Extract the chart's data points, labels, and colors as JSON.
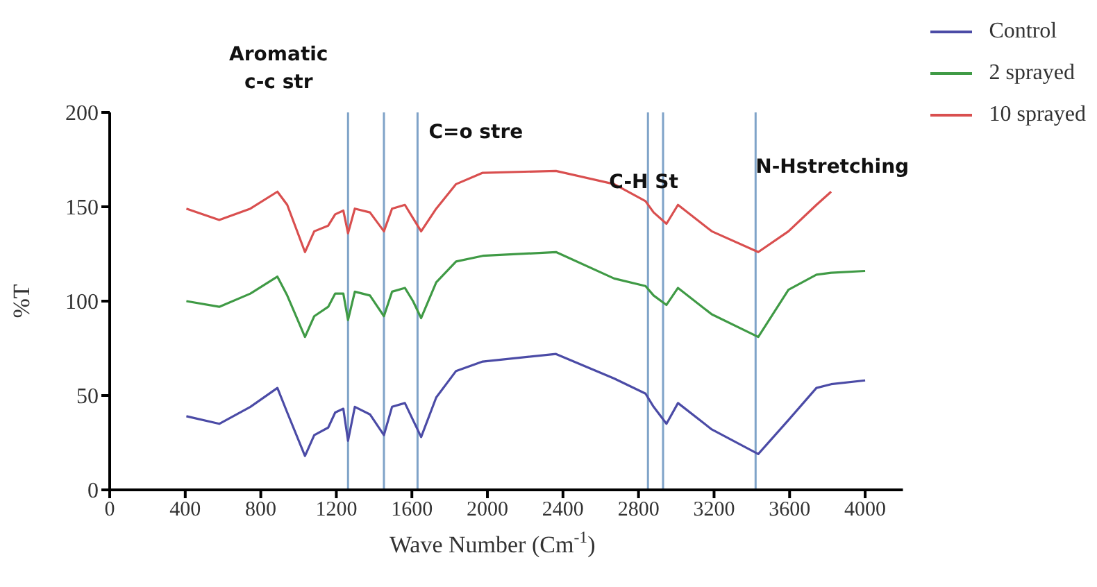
{
  "chart_data": {
    "type": "line",
    "xlabel": "Wave Number (Cm$^{-1}$)",
    "ylabel": "%T",
    "x": [
      406,
      580,
      745,
      888,
      940,
      1034,
      1083,
      1157,
      1194,
      1237,
      1262,
      1298,
      1378,
      1452,
      1495,
      1563,
      1606,
      1649,
      1729,
      1834,
      1975,
      2363,
      2671,
      2837,
      2880,
      2948,
      3009,
      3188,
      3434,
      3594,
      3742,
      3820,
      4000
    ],
    "series": [
      {
        "name": "Control",
        "color": "#4b4ba6",
        "values": [
          39,
          35,
          44,
          54,
          41,
          18,
          29,
          33,
          41,
          43,
          26,
          44,
          40,
          29,
          44,
          46,
          37,
          28,
          49,
          63,
          68,
          72,
          59,
          51,
          44,
          35,
          46,
          32,
          19,
          37,
          54,
          56,
          58
        ]
      },
      {
        "name": "2 sprayed",
        "color": "#3f9a45",
        "values": [
          100,
          97,
          104,
          113,
          103,
          81,
          92,
          97,
          104,
          104,
          90,
          105,
          103,
          92,
          105,
          107,
          100,
          91,
          110,
          121,
          124,
          126,
          112,
          108,
          103,
          98,
          107,
          93,
          81,
          106,
          114,
          115,
          116
        ]
      },
      {
        "name": "10 sprayed",
        "color": "#d94f4f",
        "values": [
          149,
          143,
          149,
          158,
          151,
          126,
          137,
          140,
          146,
          148,
          136,
          149,
          147,
          137,
          149,
          151,
          144,
          137,
          149,
          162,
          168,
          169,
          162,
          153,
          147,
          141,
          151,
          137,
          126,
          137,
          151,
          158,
          null
        ]
      }
    ],
    "xlim": [
      0,
      4200
    ],
    "xticks": [
      0,
      400,
      800,
      1200,
      1600,
      2000,
      2400,
      2800,
      3200,
      3600,
      4000
    ],
    "ylim": [
      0,
      200
    ],
    "yticks": [
      0,
      50,
      100,
      150,
      200
    ],
    "grid": false,
    "legend": "top right",
    "marker": "none",
    "line_style": "solid",
    "ref_lines": [
      {
        "axis": "x",
        "value": 1262,
        "color": "#7fa3c8"
      },
      {
        "axis": "x",
        "value": 1452,
        "color": "#7fa3c8"
      },
      {
        "axis": "x",
        "value": 1630,
        "color": "#7fa3c8"
      },
      {
        "axis": "x",
        "value": 2850,
        "color": "#7fa3c8"
      },
      {
        "axis": "x",
        "value": 2930,
        "color": "#7fa3c8"
      },
      {
        "axis": "x",
        "value": 3420,
        "color": "#7fa3c8"
      }
    ],
    "annotations": [
      {
        "text": "Aromatic c-c str",
        "x": 1262,
        "y": 182
      },
      {
        "text": "C=o stre",
        "x": 1630,
        "y": 185
      },
      {
        "text": "C-H St",
        "x": 2930,
        "y": 151
      },
      {
        "text": "N-Hstretching",
        "x": 3420,
        "y": 146
      }
    ]
  }
}
